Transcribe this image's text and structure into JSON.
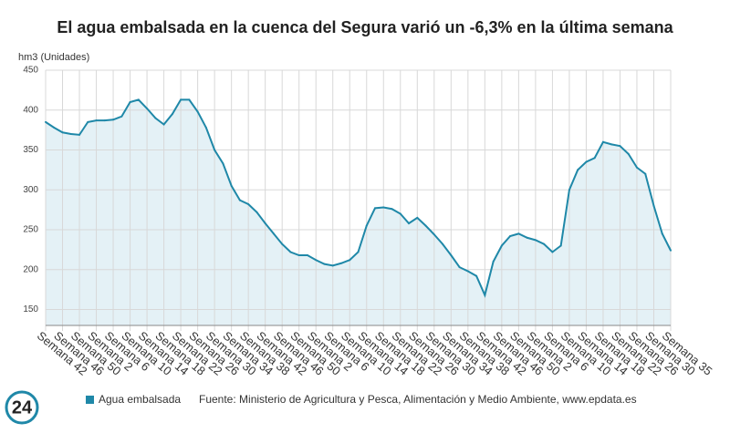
{
  "chart_data": {
    "type": "area",
    "title": "El agua embalsada en la cuenca del Segura varió un -6,3% en la última semana",
    "y_label": "hm3 (Unidades)",
    "categories": [
      "Semana 42",
      null,
      "Semana 46",
      null,
      "Semana 50",
      null,
      "Semana 2",
      null,
      "Semana 6",
      null,
      "Semana 10",
      null,
      "Semana 14",
      null,
      "Semana 18",
      null,
      "Semana 22",
      null,
      "Semana 26",
      null,
      "Semana 30",
      null,
      "Semana 34",
      null,
      "Semana 38",
      null,
      "Semana 42",
      null,
      "Semana 46",
      null,
      "Semana 50",
      null,
      "Semana 2",
      null,
      "Semana 6",
      null,
      "Semana 10",
      null,
      "Semana 14",
      null,
      "Semana 18",
      null,
      "Semana 22",
      null,
      "Semana 26",
      null,
      "Semana 30",
      null,
      "Semana 34",
      null,
      "Semana 38",
      null,
      "Semana 42",
      null,
      "Semana 46",
      null,
      "Semana 50",
      null,
      "Semana 2",
      null,
      "Semana 6",
      null,
      "Semana 10",
      null,
      "Semana 14",
      null,
      "Semana 18",
      null,
      "Semana 22",
      null,
      "Semana 26",
      null,
      "Semana 30",
      null,
      "Semana 35"
    ],
    "series": [
      {
        "name": "Agua embalsada",
        "color": "#1f88a8",
        "fill": "#e4f1f6",
        "values": [
          385,
          378,
          372,
          370,
          369,
          385,
          387,
          387,
          388,
          392,
          410,
          413,
          402,
          390,
          382,
          395,
          413,
          413,
          398,
          378,
          350,
          333,
          305,
          287,
          282,
          272,
          258,
          245,
          232,
          222,
          218,
          218,
          212,
          207,
          205,
          208,
          212,
          222,
          255,
          277,
          278,
          276,
          270,
          258,
          265,
          255,
          244,
          232,
          218,
          203,
          198,
          192,
          168,
          210,
          230,
          242,
          245,
          240,
          237,
          232,
          222,
          230,
          300,
          325,
          335,
          340,
          360,
          357,
          355,
          345,
          328,
          320,
          280,
          245,
          224
        ]
      }
    ],
    "ylim": [
      130,
      450
    ],
    "yticks": [
      150,
      200,
      250,
      300,
      350,
      400,
      450
    ],
    "grid": true,
    "source": "Fuente: Ministerio de Agricultura y Pesca, Alimentación y Medio Ambiente, www.epdata.es",
    "logo": "24"
  }
}
